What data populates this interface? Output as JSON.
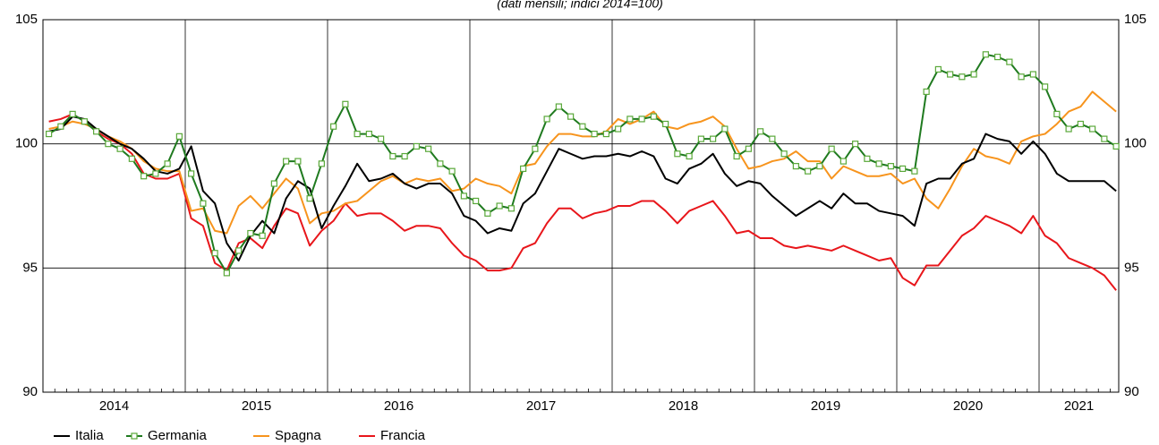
{
  "chart_data": {
    "type": "line",
    "subtitle": "(dati mensili; indici 2014=100)",
    "years": [
      "2014",
      "2015",
      "2016",
      "2017",
      "2018",
      "2019",
      "2020",
      "2021"
    ],
    "ylim": [
      90,
      105
    ],
    "yticks": [
      90,
      95,
      100,
      105
    ],
    "grid": true,
    "legend": "bottom-left",
    "series": [
      {
        "name": "Italia",
        "color": "#000000",
        "values": [
          100.5,
          100.6,
          101.1,
          101.0,
          100.6,
          100.3,
          100.0,
          99.8,
          99.4,
          98.9,
          98.8,
          99.0,
          99.9,
          98.1,
          97.6,
          96.0,
          95.3,
          96.3,
          96.9,
          96.4,
          97.8,
          98.5,
          98.2,
          96.6,
          97.5,
          98.3,
          99.2,
          98.5,
          98.6,
          98.8,
          98.4,
          98.2,
          98.4,
          98.4,
          98.0,
          97.1,
          96.9,
          96.4,
          96.6,
          96.5,
          97.6,
          98.0,
          98.9,
          99.8,
          99.6,
          99.4,
          99.5,
          99.5,
          99.6,
          99.5,
          99.7,
          99.5,
          98.6,
          98.4,
          99.0,
          99.2,
          99.6,
          98.8,
          98.3,
          98.5,
          98.4,
          97.9,
          97.5,
          97.1,
          97.4,
          97.7,
          97.4,
          98.0,
          97.6,
          97.6,
          97.3,
          97.2,
          97.1,
          96.7,
          98.4,
          98.6,
          98.6,
          99.2,
          99.4,
          100.4,
          100.2,
          100.1,
          99.6,
          100.1,
          99.6,
          98.8,
          98.5,
          98.5,
          98.5,
          98.5,
          98.1
        ]
      },
      {
        "name": "Germania",
        "color": "#1f7a1f",
        "marker": "square",
        "marker_color": "#5aa83a",
        "values": [
          100.4,
          100.7,
          101.2,
          100.9,
          100.5,
          100.0,
          99.8,
          99.4,
          98.7,
          98.8,
          99.2,
          100.3,
          98.8,
          97.6,
          95.6,
          94.8,
          95.7,
          96.4,
          96.3,
          98.4,
          99.3,
          99.3,
          97.8,
          99.2,
          100.7,
          101.6,
          100.4,
          100.4,
          100.2,
          99.5,
          99.5,
          99.9,
          99.8,
          99.2,
          98.9,
          97.9,
          97.7,
          97.2,
          97.5,
          97.4,
          99.0,
          99.8,
          101.0,
          101.5,
          101.1,
          100.7,
          100.4,
          100.4,
          100.6,
          101.0,
          101.0,
          101.1,
          100.8,
          99.6,
          99.5,
          100.2,
          100.2,
          100.6,
          99.5,
          99.8,
          100.5,
          100.2,
          99.6,
          99.1,
          98.9,
          99.1,
          99.8,
          99.3,
          100.0,
          99.4,
          99.2,
          99.1,
          99.0,
          98.9,
          102.1,
          103.0,
          102.8,
          102.7,
          102.8,
          103.6,
          103.5,
          103.3,
          102.7,
          102.8,
          102.3,
          101.2,
          100.6,
          100.8,
          100.6,
          100.2,
          99.9
        ]
      },
      {
        "name": "Spagna",
        "color": "#f7941d",
        "values": [
          100.6,
          100.7,
          100.9,
          100.8,
          100.6,
          100.3,
          100.1,
          99.8,
          99.3,
          99.0,
          98.9,
          98.9,
          97.3,
          97.4,
          96.5,
          96.4,
          97.5,
          97.9,
          97.4,
          98.0,
          98.6,
          98.2,
          96.8,
          97.2,
          97.3,
          97.6,
          97.7,
          98.1,
          98.5,
          98.7,
          98.4,
          98.6,
          98.5,
          98.6,
          98.1,
          98.2,
          98.6,
          98.4,
          98.3,
          98.0,
          99.1,
          99.2,
          99.9,
          100.4,
          100.4,
          100.3,
          100.3,
          100.5,
          101.0,
          100.8,
          101.0,
          101.3,
          100.7,
          100.6,
          100.8,
          100.9,
          101.1,
          100.7,
          99.8,
          99.0,
          99.1,
          99.3,
          99.4,
          99.7,
          99.3,
          99.3,
          98.6,
          99.1,
          98.9,
          98.7,
          98.7,
          98.8,
          98.4,
          98.6,
          97.8,
          97.4,
          98.2,
          99.1,
          99.8,
          99.5,
          99.4,
          99.2,
          100.1,
          100.3,
          100.4,
          100.8,
          101.3,
          101.5,
          102.1,
          101.7,
          101.3
        ]
      },
      {
        "name": "Francia",
        "color": "#e8161b",
        "values": [
          100.9,
          101.0,
          101.2,
          100.9,
          100.5,
          100.2,
          100.0,
          99.6,
          98.8,
          98.6,
          98.6,
          98.8,
          97.0,
          96.7,
          95.2,
          94.9,
          96.0,
          96.2,
          95.8,
          96.7,
          97.4,
          97.2,
          95.9,
          96.5,
          96.9,
          97.6,
          97.1,
          97.2,
          97.2,
          96.9,
          96.5,
          96.7,
          96.7,
          96.6,
          96.0,
          95.5,
          95.3,
          94.9,
          94.9,
          95.0,
          95.8,
          96.0,
          96.8,
          97.4,
          97.4,
          97.0,
          97.2,
          97.3,
          97.5,
          97.5,
          97.7,
          97.7,
          97.3,
          96.8,
          97.3,
          97.5,
          97.7,
          97.1,
          96.4,
          96.5,
          96.2,
          96.2,
          95.9,
          95.8,
          95.9,
          95.8,
          95.7,
          95.9,
          95.7,
          95.5,
          95.3,
          95.4,
          94.6,
          94.3,
          95.1,
          95.1,
          95.7,
          96.3,
          96.6,
          97.1,
          96.9,
          96.7,
          96.4,
          97.1,
          96.3,
          96.0,
          95.4,
          95.2,
          95.0,
          94.7,
          94.1
        ]
      }
    ]
  }
}
